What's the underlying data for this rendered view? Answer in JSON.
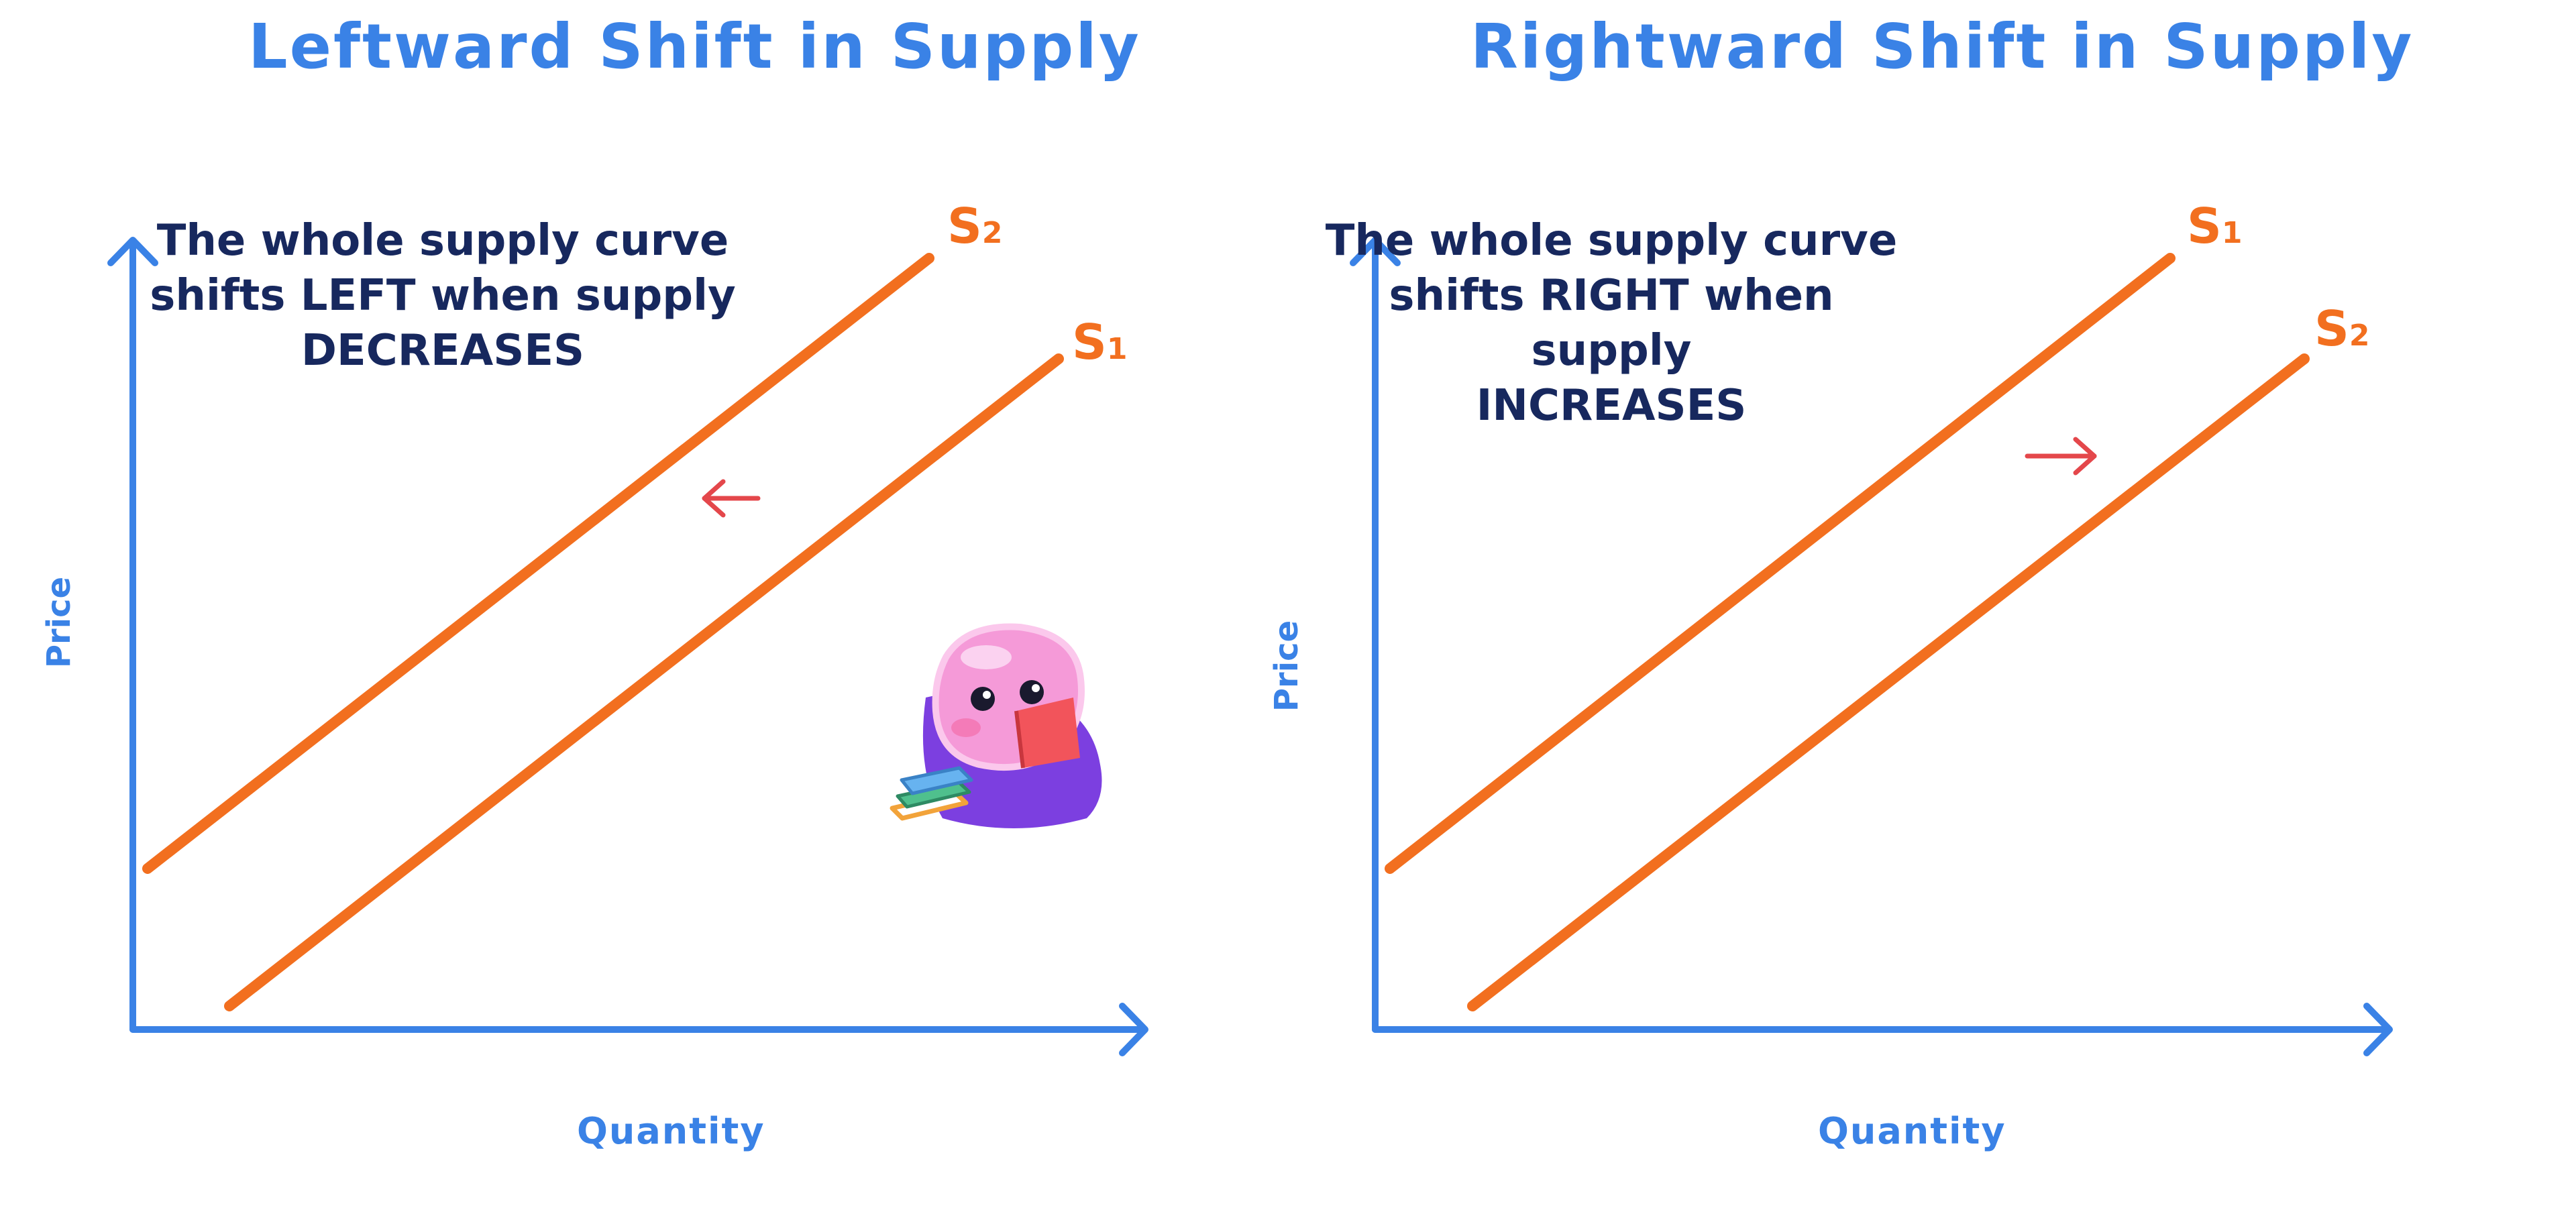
{
  "left_panel": {
    "title": "Leftward Shift in Supply",
    "note_lines": [
      "The whole supply curve",
      "shifts LEFT when supply",
      "DECREASES"
    ],
    "y_axis_label": "Price",
    "x_axis_label": "Quantity",
    "upper_curve_label": "S",
    "upper_curve_subscript": "2",
    "lower_curve_label": "S",
    "lower_curve_subscript": "1",
    "arrow_direction": "left"
  },
  "right_panel": {
    "title": "Rightward Shift in Supply",
    "note_lines": [
      "The whole supply curve",
      "shifts RIGHT when supply",
      "INCREASES"
    ],
    "y_axis_label": "Price",
    "x_axis_label": "Quantity",
    "upper_curve_label": "S",
    "upper_curve_subscript": "1",
    "lower_curve_label": "S",
    "lower_curve_subscript": "2",
    "arrow_direction": "right"
  },
  "colors": {
    "axis": "#3a82e6",
    "curve": "#f26f1f",
    "shift_arrow": "#e4474b",
    "note_text": "#17285e"
  },
  "icons": {
    "mascot": "reading-pink-mascot-icon"
  }
}
